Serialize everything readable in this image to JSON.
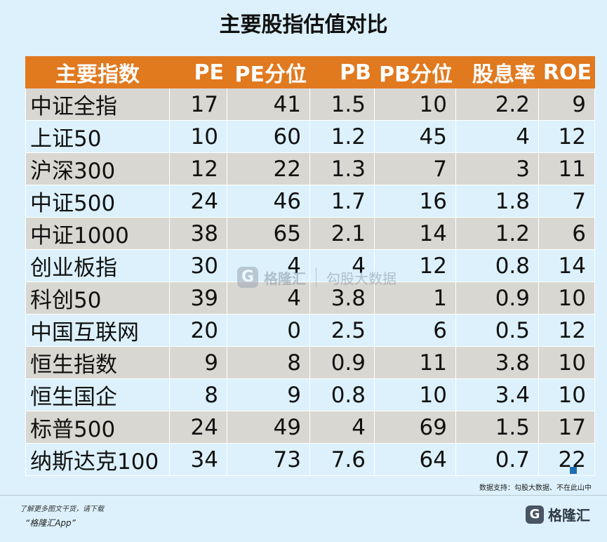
{
  "title": "主要股指估值对比",
  "chart_data": {
    "type": "table",
    "title": "主要股指估值对比",
    "columns": [
      "主要指数",
      "PE",
      "PE分位",
      "PB",
      "PB分位",
      "股息率",
      "ROE"
    ],
    "rows": [
      [
        "中证全指",
        "17",
        "41",
        "1.5",
        "10",
        "2.2",
        "9"
      ],
      [
        "上证50",
        "10",
        "60",
        "1.2",
        "45",
        "4",
        "12"
      ],
      [
        "沪深300",
        "12",
        "22",
        "1.3",
        "7",
        "3",
        "11"
      ],
      [
        "中证500",
        "24",
        "46",
        "1.7",
        "16",
        "1.8",
        "7"
      ],
      [
        "中证1000",
        "38",
        "65",
        "2.1",
        "14",
        "1.2",
        "6"
      ],
      [
        "创业板指",
        "30",
        "4",
        "4",
        "12",
        "0.8",
        "14"
      ],
      [
        "科创50",
        "39",
        "4",
        "3.8",
        "1",
        "0.9",
        "10"
      ],
      [
        "中国互联网",
        "20",
        "0",
        "2.5",
        "6",
        "0.5",
        "12"
      ],
      [
        "恒生指数",
        "9",
        "8",
        "0.9",
        "11",
        "3.8",
        "10"
      ],
      [
        "恒生国企",
        "8",
        "9",
        "0.8",
        "10",
        "3.4",
        "10"
      ],
      [
        "标普500",
        "24",
        "49",
        "4",
        "69",
        "1.5",
        "17"
      ],
      [
        "纳斯达克100",
        "34",
        "73",
        "7.6",
        "64",
        "0.7",
        "22"
      ]
    ],
    "header_color": "#e1791f",
    "row_colors": [
      "#d9d7d1",
      "#dcf1fb"
    ]
  },
  "watermark": {
    "logo_letter": "G",
    "brand": "格隆汇",
    "text": "勾股大数据"
  },
  "source_note": "数据支持：勾股大数据、不在此山中",
  "footer": {
    "download_note": "了解更多图文干货，请下载",
    "app_name": "“格隆汇App”",
    "brand_logo_letter": "G",
    "brand_name": "格隆汇"
  }
}
